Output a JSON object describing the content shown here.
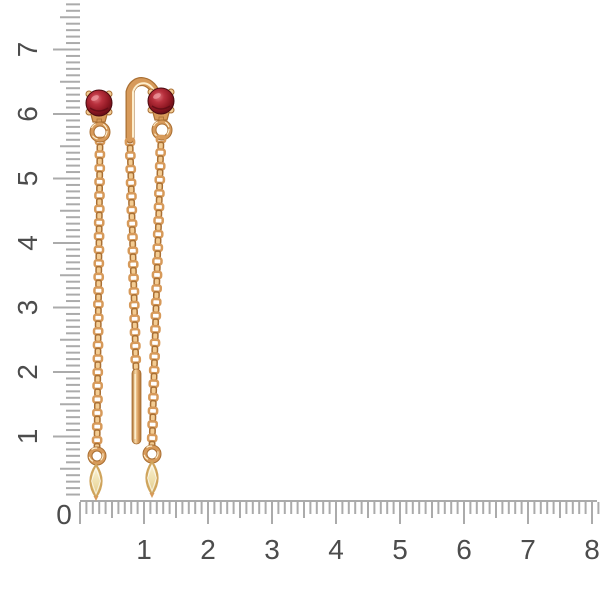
{
  "page": {
    "background": "#ffffff"
  },
  "rulers": {
    "tick_color": "#ababab",
    "label_color": "#4c4c4c",
    "origin_label": "0",
    "vertical_labels": [
      "1",
      "2",
      "3",
      "4",
      "5",
      "6",
      "7"
    ],
    "horizontal_labels": [
      "1",
      "2",
      "3",
      "4",
      "5",
      "6",
      "7",
      "8"
    ]
  },
  "product": {
    "name": "chain-threader-earrings-with-red-stones",
    "colors": {
      "gold_dark": "#a96f33",
      "gold_mid": "#d79a5a",
      "gold_light": "#f3cc93",
      "gold_highlight": "#fdeecd",
      "stone_dark": "#5c0d15",
      "stone_mid": "#9e1f2a",
      "stone_light": "#d96a71",
      "stone_glint": "#ef9aa0",
      "drop_light": "#f7eecb",
      "drop_mid": "#e8d193",
      "drop_edge": "#cfa45c"
    },
    "parts": {
      "left_earring": [
        "red-stone-stud",
        "connector-loop",
        "cable-chain",
        "marquise-drop"
      ],
      "right_earring": [
        "red-stone-stud",
        "ear-hook",
        "back-chain",
        "threader-bar",
        "front-chain",
        "marquise-drop"
      ]
    }
  }
}
